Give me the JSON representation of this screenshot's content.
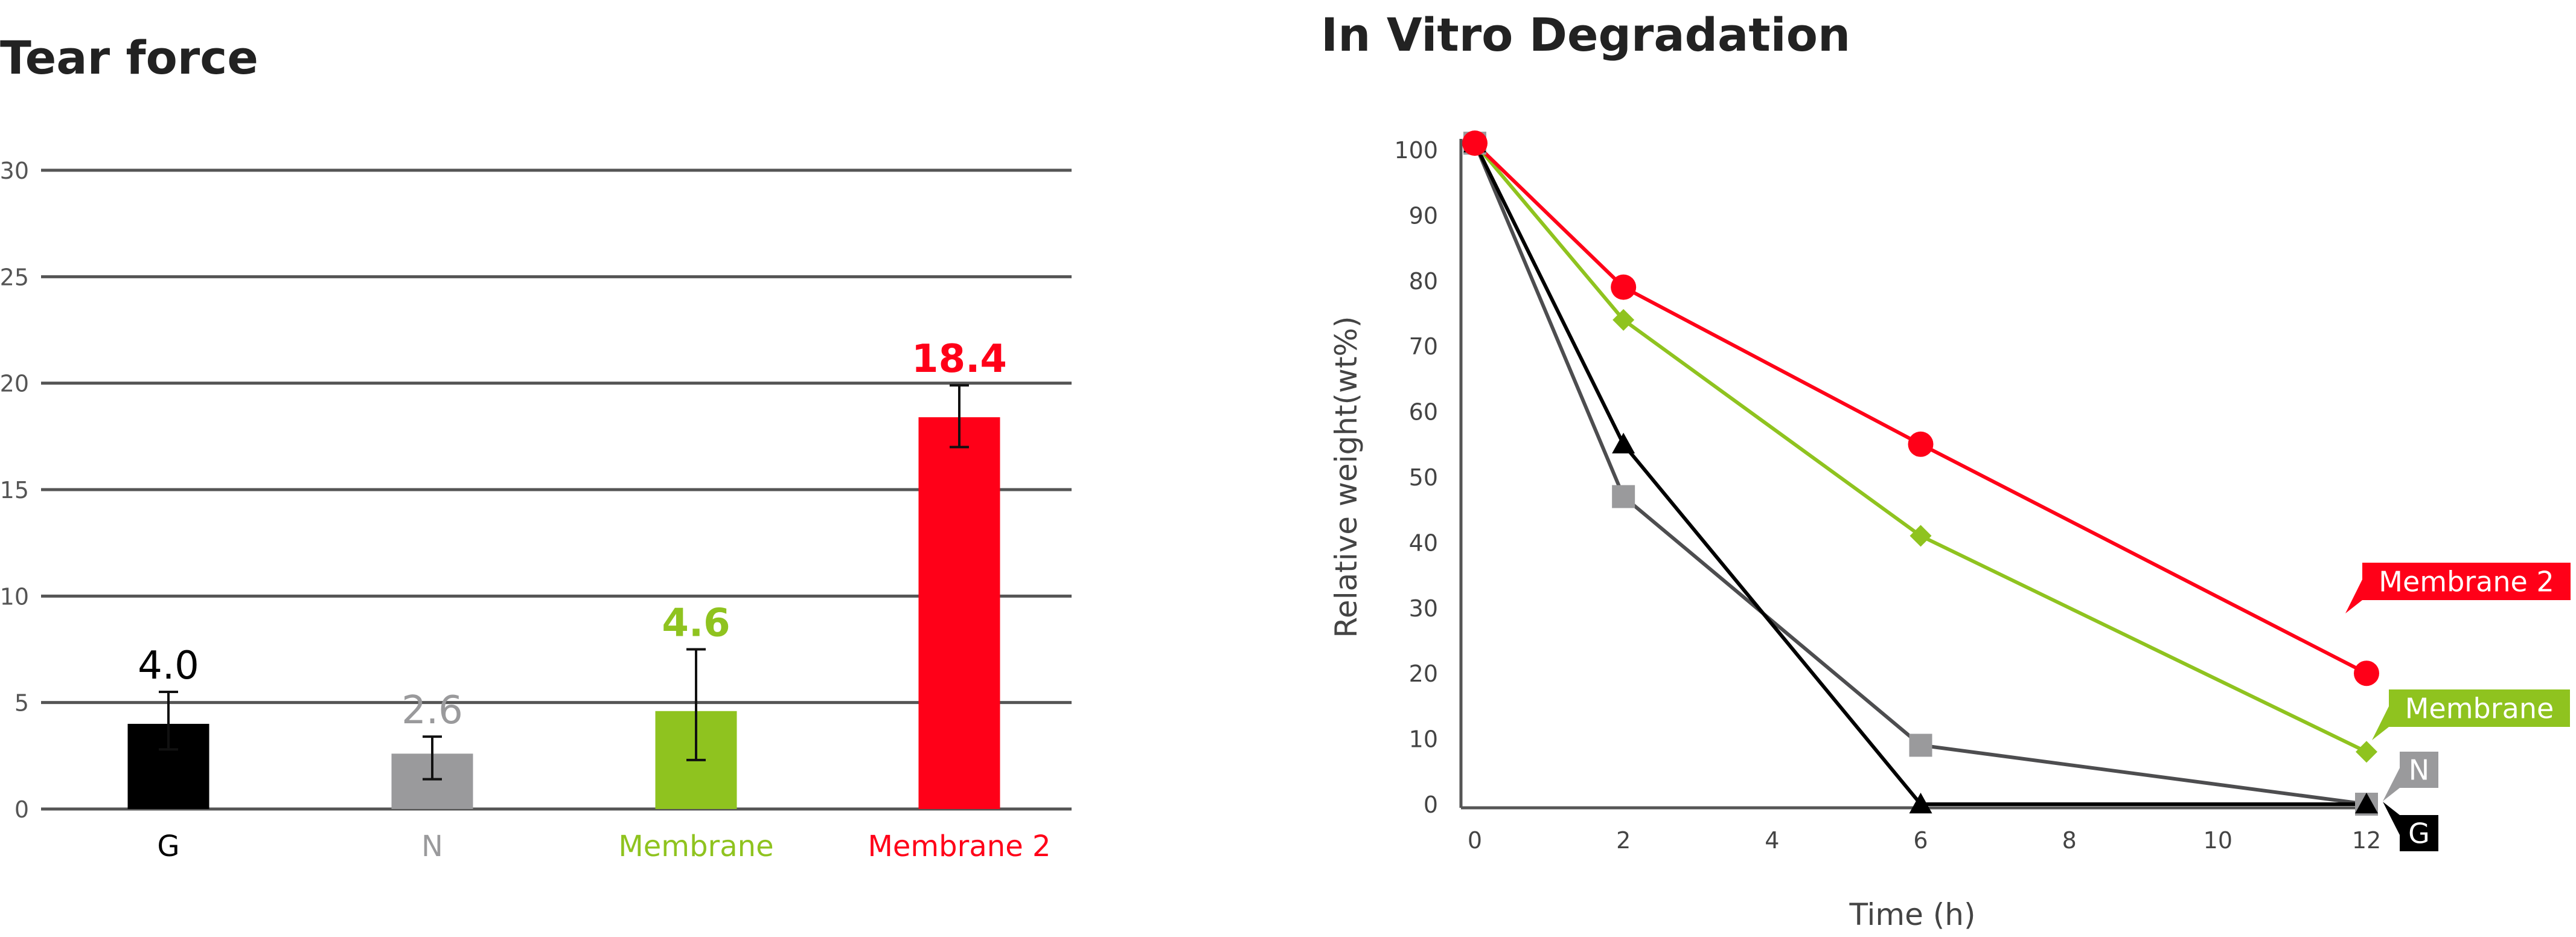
{
  "chart_data": [
    {
      "type": "bar",
      "title": "Tear force",
      "xlabel": "",
      "ylabel": "",
      "ylim": [
        0,
        30
      ],
      "yticks": [
        "0",
        "5",
        "10",
        "15",
        "20",
        "25",
        "30"
      ],
      "grid": true,
      "categories": [
        "G",
        "N",
        "Membrane",
        "Membrane 2"
      ],
      "values": [
        4.0,
        2.6,
        4.6,
        18.4
      ],
      "value_labels": [
        "4.0",
        "2.6",
        "4.6",
        "18.4"
      ],
      "error_low": [
        2.8,
        1.4,
        2.3,
        17.0
      ],
      "error_high": [
        5.5,
        3.4,
        7.5,
        19.9
      ],
      "colors": [
        "#000000",
        "#9a9a9c",
        "#8fc31f",
        "#ff0018"
      ]
    },
    {
      "type": "line",
      "title": "In Vitro Degradation",
      "xlabel": "Time (h)",
      "ylabel": "Relative weight(wt%)",
      "xlim": [
        0,
        12
      ],
      "ylim": [
        0,
        100
      ],
      "xticks": [
        "0",
        "2",
        "4",
        "6",
        "8",
        "10",
        "12"
      ],
      "yticks": [
        "0",
        "10",
        "20",
        "30",
        "40",
        "50",
        "60",
        "70",
        "80",
        "90",
        "100"
      ],
      "grid": false,
      "series": [
        {
          "name": "N",
          "marker": "square",
          "color": "#9a9a9c",
          "line_color": "#4d4d4f",
          "x": [
            0,
            2,
            6,
            12
          ],
          "y": [
            101,
            47,
            9,
            0
          ]
        },
        {
          "name": "G",
          "marker": "triangle",
          "color": "#000000",
          "line_color": "#000000",
          "x": [
            0,
            2,
            6,
            12
          ],
          "y": [
            101,
            55,
            0,
            0
          ]
        },
        {
          "name": "Membrane",
          "marker": "diamond",
          "color": "#8fc31f",
          "line_color": "#8fc31f",
          "x": [
            0,
            2,
            6,
            12
          ],
          "y": [
            101,
            74,
            41,
            8
          ]
        },
        {
          "name": "Membrane 2",
          "marker": "circle",
          "color": "#ff0018",
          "line_color": "#ff0018",
          "x": [
            0,
            2,
            6,
            12
          ],
          "y": [
            101,
            79,
            55,
            20
          ]
        }
      ],
      "annotations": [
        {
          "text": "Membrane 2",
          "series": "Membrane 2",
          "bg": "#ff0018",
          "fg": "#ffffff"
        },
        {
          "text": "Membrane",
          "series": "Membrane",
          "bg": "#8fc31f",
          "fg": "#ffffff"
        },
        {
          "text": "N",
          "series": "N",
          "bg": "#9a9a9c",
          "fg": "#ffffff"
        },
        {
          "text": "G",
          "series": "G",
          "bg": "#000000",
          "fg": "#ffffff"
        }
      ]
    }
  ]
}
